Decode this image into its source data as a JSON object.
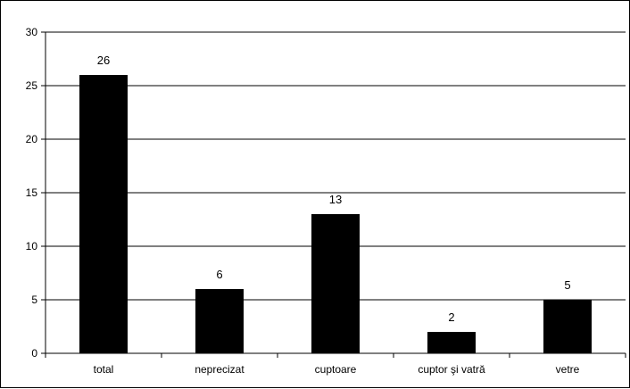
{
  "chart_data": {
    "type": "bar",
    "title": "",
    "xlabel": "",
    "ylabel": "",
    "categories": [
      "total",
      "neprecizat",
      "cuptoare",
      "cuptor şi vatră",
      "vetre"
    ],
    "values": [
      26,
      6,
      13,
      2,
      5
    ],
    "data_labels": [
      "26",
      "6",
      "13",
      "2",
      "5"
    ],
    "ylim": [
      0,
      30
    ],
    "y_ticks": [
      0,
      5,
      10,
      15,
      20,
      25,
      30
    ],
    "y_tick_labels": [
      "0",
      "5",
      "10",
      "15",
      "20",
      "25",
      "30"
    ],
    "grid": true,
    "legend": "none",
    "bar_color": "#000000",
    "gridline_color": "#000000"
  }
}
